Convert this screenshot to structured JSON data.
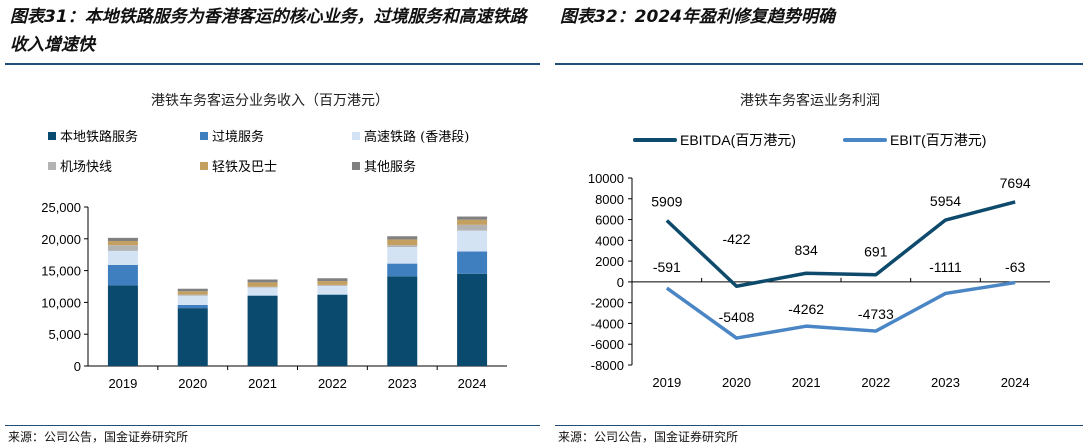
{
  "left": {
    "figure_title": "图表31：本地铁路服务为香港客运的核心业务，过境服务和高速铁路收入增速快",
    "source": "来源：公司公告，国金证券研究所"
  },
  "right": {
    "figure_title": "图表32：2024年盈利修复趋势明确",
    "source": "来源：公司公告，国金证券研究所"
  },
  "chart_data": [
    {
      "type": "bar",
      "stacked": true,
      "title": "港铁车务客运分业务收入（百万港元）",
      "categories": [
        "2019",
        "2020",
        "2021",
        "2022",
        "2023",
        "2024"
      ],
      "ylim": [
        0,
        25000
      ],
      "yticks": [
        0,
        5000,
        10000,
        15000,
        20000,
        25000
      ],
      "ytick_labels": [
        "0",
        "5,000",
        "10,000",
        "15,000",
        "20,000",
        "25,000"
      ],
      "grid": false,
      "legend_position": "top",
      "series": [
        {
          "name": "本地铁路服务",
          "color": "#0b4a6f",
          "values": [
            12700,
            9100,
            11050,
            11200,
            14100,
            14500
          ]
        },
        {
          "name": "过境服务",
          "color": "#3f7fbf",
          "values": [
            3200,
            500,
            50,
            50,
            2000,
            3500
          ]
        },
        {
          "name": "高速铁路 (香港段)",
          "color": "#d4e3f3",
          "values": [
            2200,
            1450,
            1250,
            1350,
            2600,
            3300
          ]
        },
        {
          "name": "机场快线",
          "color": "#b3b3b3",
          "values": [
            900,
            200,
            100,
            150,
            300,
            900
          ]
        },
        {
          "name": "轻铁及巴士",
          "color": "#c4a060",
          "values": [
            650,
            500,
            700,
            600,
            900,
            800
          ]
        },
        {
          "name": "其他服务",
          "color": "#808080",
          "values": [
            500,
            400,
            450,
            450,
            500,
            500
          ]
        }
      ]
    },
    {
      "type": "line",
      "title": "港铁车务客运业务利润",
      "categories": [
        "2019",
        "2020",
        "2021",
        "2022",
        "2023",
        "2024"
      ],
      "ylim": [
        -8000,
        10000
      ],
      "yticks": [
        -8000,
        -6000,
        -4000,
        -2000,
        0,
        2000,
        4000,
        6000,
        8000,
        10000
      ],
      "grid": false,
      "legend_position": "top",
      "series": [
        {
          "name": "EBITDA(百万港元)",
          "color": "#0e4a6b",
          "values": [
            5909,
            -422,
            834,
            691,
            5954,
            7694
          ],
          "labels": [
            "5909",
            "-422",
            "834",
            "691",
            "5954",
            "7694"
          ]
        },
        {
          "name": "EBIT(百万港元)",
          "color": "#4a86c5",
          "values": [
            -591,
            -5408,
            -4262,
            -4733,
            -1111,
            -63
          ],
          "labels": [
            "-591",
            "-5408",
            "-4262",
            "-4733",
            "-1111",
            "-63"
          ]
        }
      ]
    }
  ]
}
